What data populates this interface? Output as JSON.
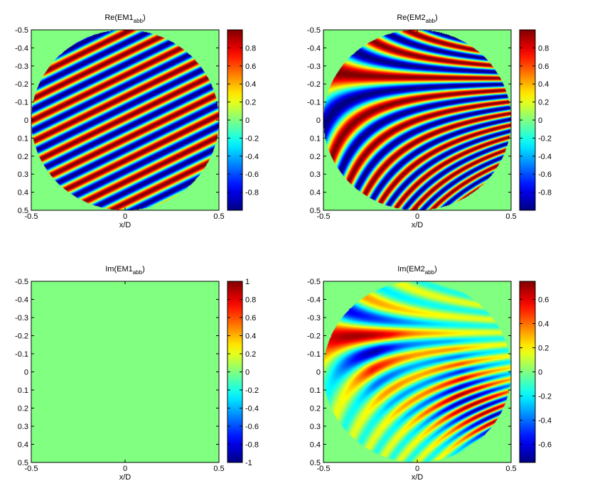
{
  "chart_data": [
    {
      "type": "heatmap",
      "title_main": "Re(EM1",
      "title_sub": "abb",
      "title_close": ")",
      "xlabel": "x/D",
      "xticks": [
        "-0.5",
        "0",
        "0.5"
      ],
      "yticks": [
        "-0.5",
        "-0.4",
        "-0.3",
        "-0.2",
        "-0.1",
        "0",
        "0.1",
        "0.2",
        "0.3",
        "0.4",
        "0.5"
      ],
      "xlim": [
        -0.5,
        0.5
      ],
      "ylim": [
        -0.5,
        0.5
      ],
      "clim": [
        -1,
        1
      ],
      "colorbar_ticks": [
        "0.8",
        "0.6",
        "0.4",
        "0.2",
        "0",
        "-0.2",
        "-0.4",
        "-0.6",
        "-0.8"
      ],
      "colorbar_values": [
        0.8,
        0.6,
        0.4,
        0.2,
        0,
        -0.2,
        -0.4,
        -0.6,
        -0.8
      ],
      "colormap": "jet",
      "pattern": "diagonal-fringes",
      "aperture": "circle radius 0.5"
    },
    {
      "type": "heatmap",
      "title_main": "Re(EM2",
      "title_sub": "abb",
      "title_close": ")",
      "xlabel": "x/D",
      "xticks": [
        "-0.5",
        "0",
        "0.5"
      ],
      "yticks": [
        "-0.5",
        "-0.4",
        "-0.3",
        "-0.2",
        "-0.1",
        "0",
        "0.1",
        "0.2",
        "0.3",
        "0.4",
        "0.5"
      ],
      "xlim": [
        -0.5,
        0.5
      ],
      "ylim": [
        -0.5,
        0.5
      ],
      "clim": [
        -1,
        1
      ],
      "colorbar_ticks": [
        "0.8",
        "0.6",
        "0.4",
        "0.2",
        "0",
        "-0.2",
        "-0.4",
        "-0.6",
        "-0.8"
      ],
      "colorbar_values": [
        0.8,
        0.6,
        0.4,
        0.2,
        0,
        -0.2,
        -0.4,
        -0.6,
        -0.8
      ],
      "colormap": "jet",
      "pattern": "saddle-fringes",
      "aperture": "circle radius 0.5"
    },
    {
      "type": "heatmap",
      "title_main": "Im(EM1",
      "title_sub": "abb",
      "title_close": ")",
      "xlabel": "x/D",
      "xticks": [
        "-0.5",
        "0",
        "0.5"
      ],
      "yticks": [
        "-0.5",
        "-0.4",
        "-0.3",
        "-0.2",
        "-0.1",
        "0",
        "0.1",
        "0.2",
        "0.3",
        "0.4",
        "0.5"
      ],
      "xlim": [
        -0.5,
        0.5
      ],
      "ylim": [
        -0.5,
        0.5
      ],
      "clim": [
        -1,
        1
      ],
      "colorbar_ticks": [
        "1",
        "0.8",
        "0.6",
        "0.4",
        "0.2",
        "0",
        "-0.2",
        "-0.4",
        "-0.6",
        "-0.8",
        "-1"
      ],
      "colorbar_values": [
        1,
        0.8,
        0.6,
        0.4,
        0.2,
        0,
        -0.2,
        -0.4,
        -0.6,
        -0.8,
        -1
      ],
      "colormap": "jet",
      "pattern": "zero",
      "aperture": "none"
    },
    {
      "type": "heatmap",
      "title_main": "Im(EM2",
      "title_sub": "abb",
      "title_close": ")",
      "xlabel": "x/D",
      "xticks": [
        "-0.5",
        "0",
        "0.5"
      ],
      "yticks": [
        "-0.5",
        "-0.4",
        "-0.3",
        "-0.2",
        "-0.1",
        "0",
        "0.1",
        "0.2",
        "0.3",
        "0.4",
        "0.5"
      ],
      "xlim": [
        -0.5,
        0.5
      ],
      "ylim": [
        -0.5,
        0.5
      ],
      "clim": [
        -0.75,
        0.75
      ],
      "colorbar_ticks": [
        "0.6",
        "0.4",
        "0.2",
        "0",
        "-0.2",
        "-0.4",
        "-0.6"
      ],
      "colorbar_values": [
        0.6,
        0.4,
        0.2,
        0,
        -0.2,
        -0.4,
        -0.6
      ],
      "colormap": "jet",
      "pattern": "saddle-fringes-imag",
      "aperture": "circle radius 0.5"
    }
  ]
}
